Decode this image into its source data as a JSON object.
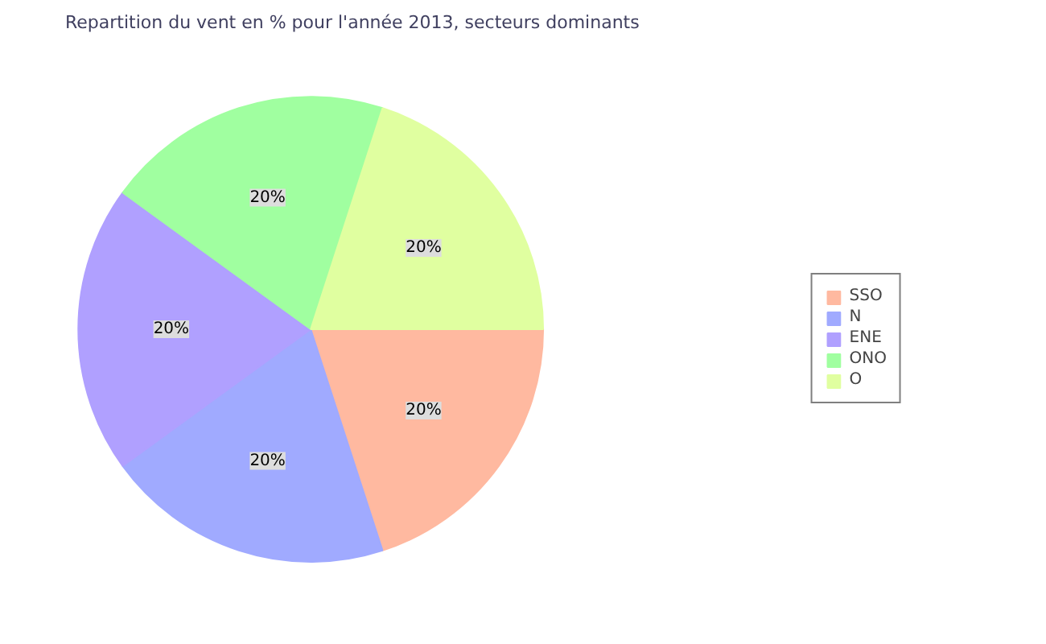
{
  "chart_data": {
    "type": "pie",
    "title": "Repartition du vent en % pour l'année 2013, secteurs dominants",
    "categories": [
      "SSO",
      "N",
      "ENE",
      "ONO",
      "O"
    ],
    "values": [
      20,
      20,
      20,
      20,
      20
    ],
    "value_labels": [
      "20%",
      "20%",
      "20%",
      "20%",
      "20%"
    ],
    "colors": [
      "#ffb9a0",
      "#a0aaff",
      "#b0a0ff",
      "#a0ffa0",
      "#e0ffa0"
    ],
    "legend": "right"
  }
}
